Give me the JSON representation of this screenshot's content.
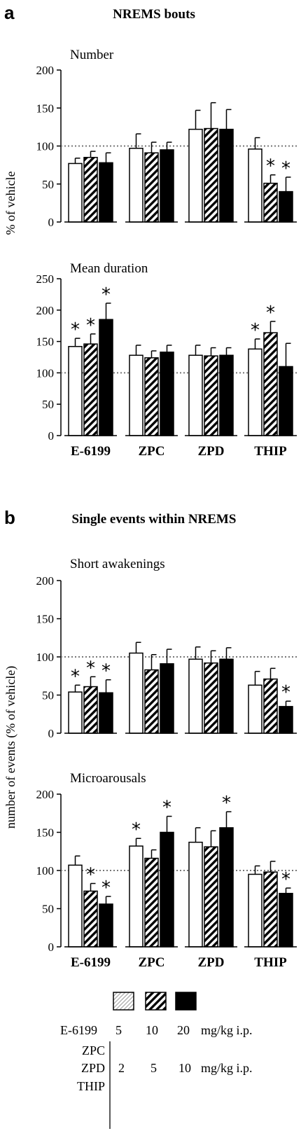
{
  "panels": [
    {
      "letter": "a",
      "title": "NREMS bouts",
      "ylabel": "% of vehicle"
    },
    {
      "letter": "b",
      "title": "Single events within NREMS",
      "ylabel": "number of events (% of vehicle)"
    }
  ],
  "colors": {
    "bar_low": "#ffffff",
    "bar_mid": "hatched-black",
    "bar_high": "#000000",
    "reference_line": "#777777"
  },
  "chart_data": [
    {
      "type": "bar",
      "title": "Number",
      "categories": [
        "E-6199",
        "ZPC",
        "ZPD",
        "THIP"
      ],
      "ylim": [
        0,
        200
      ],
      "yticks": [
        0,
        50,
        100,
        150,
        200
      ],
      "reference_line": 100,
      "series": [
        {
          "values": [
            77,
            97,
            122,
            96
          ],
          "errors": [
            7,
            19,
            25,
            15
          ],
          "significant": [
            false,
            false,
            false,
            false
          ]
        },
        {
          "values": [
            85,
            91,
            123,
            51
          ],
          "errors": [
            8,
            14,
            34,
            11
          ],
          "significant": [
            false,
            false,
            false,
            true
          ]
        },
        {
          "values": [
            78,
            95,
            122,
            40
          ],
          "errors": [
            13,
            10,
            26,
            19
          ],
          "significant": [
            false,
            false,
            false,
            true
          ]
        }
      ]
    },
    {
      "type": "bar",
      "title": "Mean duration",
      "categories": [
        "E-6199",
        "ZPC",
        "ZPD",
        "THIP"
      ],
      "ylim": [
        0,
        250
      ],
      "yticks": [
        0,
        50,
        100,
        150,
        200,
        250
      ],
      "reference_line": 100,
      "series": [
        {
          "values": [
            142,
            128,
            128,
            138
          ],
          "errors": [
            13,
            16,
            16,
            16
          ],
          "significant": [
            true,
            false,
            false,
            true
          ]
        },
        {
          "values": [
            146,
            124,
            127,
            164
          ],
          "errors": [
            16,
            11,
            13,
            18
          ],
          "significant": [
            true,
            false,
            false,
            true
          ]
        },
        {
          "values": [
            185,
            133,
            128,
            110
          ],
          "errors": [
            26,
            11,
            12,
            37
          ],
          "significant": [
            true,
            false,
            false,
            false
          ]
        }
      ]
    },
    {
      "type": "bar",
      "title": "Short awakenings",
      "categories": [
        "E-6199",
        "ZPC",
        "ZPD",
        "THIP"
      ],
      "ylim": [
        0,
        200
      ],
      "yticks": [
        0,
        50,
        100,
        150,
        200
      ],
      "reference_line": 100,
      "series": [
        {
          "values": [
            54,
            105,
            97,
            63
          ],
          "errors": [
            9,
            14,
            16,
            18
          ],
          "significant": [
            true,
            false,
            false,
            false
          ]
        },
        {
          "values": [
            61,
            83,
            92,
            71
          ],
          "errors": [
            13,
            20,
            16,
            14
          ],
          "significant": [
            true,
            false,
            false,
            false
          ]
        },
        {
          "values": [
            53,
            91,
            97,
            35
          ],
          "errors": [
            17,
            19,
            15,
            7
          ],
          "significant": [
            true,
            false,
            false,
            true
          ]
        }
      ]
    },
    {
      "type": "bar",
      "title": "Microarousals",
      "categories": [
        "E-6199",
        "ZPC",
        "ZPD",
        "THIP"
      ],
      "ylim": [
        0,
        200
      ],
      "yticks": [
        0,
        50,
        100,
        150,
        200
      ],
      "reference_line": 100,
      "series": [
        {
          "values": [
            107,
            132,
            137,
            95
          ],
          "errors": [
            12,
            10,
            19,
            11
          ],
          "significant": [
            false,
            true,
            false,
            false
          ]
        },
        {
          "values": [
            73,
            116,
            131,
            98
          ],
          "errors": [
            10,
            11,
            21,
            14
          ],
          "significant": [
            true,
            false,
            false,
            false
          ]
        },
        {
          "values": [
            56,
            150,
            156,
            70
          ],
          "errors": [
            10,
            21,
            21,
            7
          ],
          "significant": [
            true,
            true,
            true,
            true
          ]
        }
      ]
    }
  ],
  "significance_mark": "*",
  "legend": {
    "e6199": {
      "label": "E-6199",
      "doses": [
        "5",
        "10",
        "20"
      ],
      "unit": "mg/kg i.p."
    },
    "others": {
      "labels": [
        "ZPC",
        "ZPD",
        "THIP"
      ],
      "doses": [
        "2",
        "5",
        "10"
      ],
      "unit": "mg/kg i.p."
    }
  }
}
